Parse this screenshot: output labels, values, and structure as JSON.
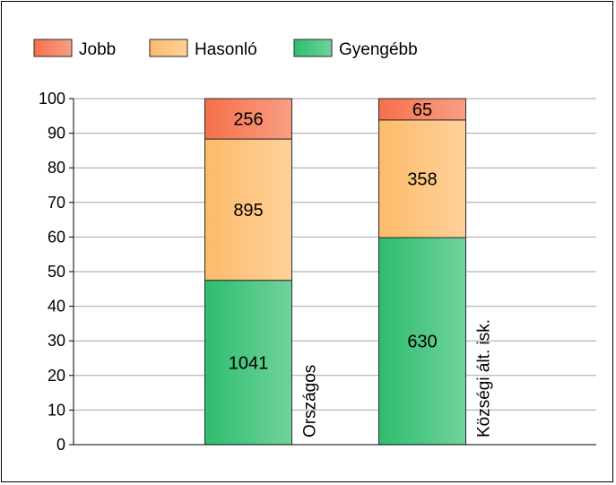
{
  "chart_data": {
    "type": "bar",
    "stacked": "percent",
    "categories": [
      "Országos",
      "Községi ált. isk."
    ],
    "series": [
      {
        "name": "Gyengébb",
        "values": [
          1041,
          630
        ],
        "color": "#2ebd6e"
      },
      {
        "name": "Hasonló",
        "values": [
          895,
          358
        ],
        "color": "#fdbb6a"
      },
      {
        "name": "Jobb",
        "values": [
          256,
          65
        ],
        "color": "#f6704a"
      }
    ],
    "ylim": [
      0,
      100
    ],
    "yticks": [
      0,
      10,
      20,
      30,
      40,
      50,
      60,
      70,
      80,
      90,
      100
    ],
    "grid": true,
    "legend_position": "top",
    "legend_order": [
      "Jobb",
      "Hasonló",
      "Gyengébb"
    ]
  }
}
